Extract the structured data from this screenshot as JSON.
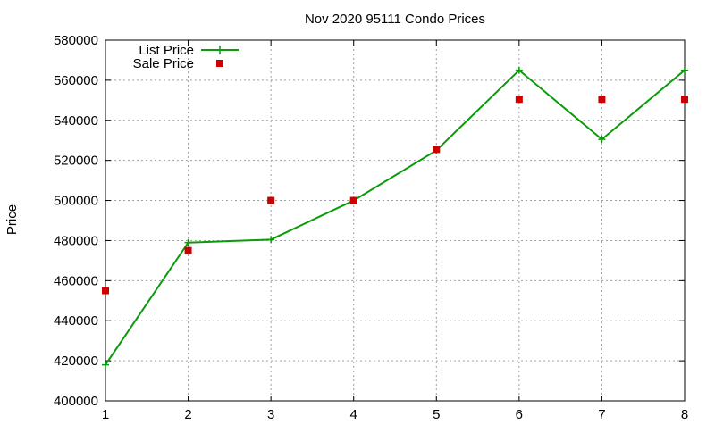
{
  "chart_data": {
    "type": "line",
    "title": "Nov 2020 95111 Condo Prices",
    "xlabel": "",
    "ylabel": "Price",
    "xlim": [
      1,
      8
    ],
    "ylim": [
      400000,
      580000
    ],
    "x_ticks": [
      1,
      2,
      3,
      4,
      5,
      6,
      7,
      8
    ],
    "y_ticks": [
      400000,
      420000,
      440000,
      460000,
      480000,
      500000,
      520000,
      540000,
      560000,
      580000
    ],
    "grid": true,
    "legend_position": "top-left",
    "series": [
      {
        "name": "List Price",
        "style": "line-with-plus-markers",
        "color": "#0a9a0a",
        "x": [
          1,
          2,
          3,
          4,
          5,
          6,
          7,
          8
        ],
        "values": [
          418000,
          479000,
          480500,
          500000,
          525000,
          565000,
          530500,
          565000
        ]
      },
      {
        "name": "Sale Price",
        "style": "square-markers",
        "color": "#cc0000",
        "x": [
          1,
          2,
          3,
          4,
          5,
          6,
          7,
          8
        ],
        "values": [
          455000,
          475000,
          500000,
          500000,
          525500,
          550500,
          550500,
          550500
        ]
      }
    ]
  }
}
